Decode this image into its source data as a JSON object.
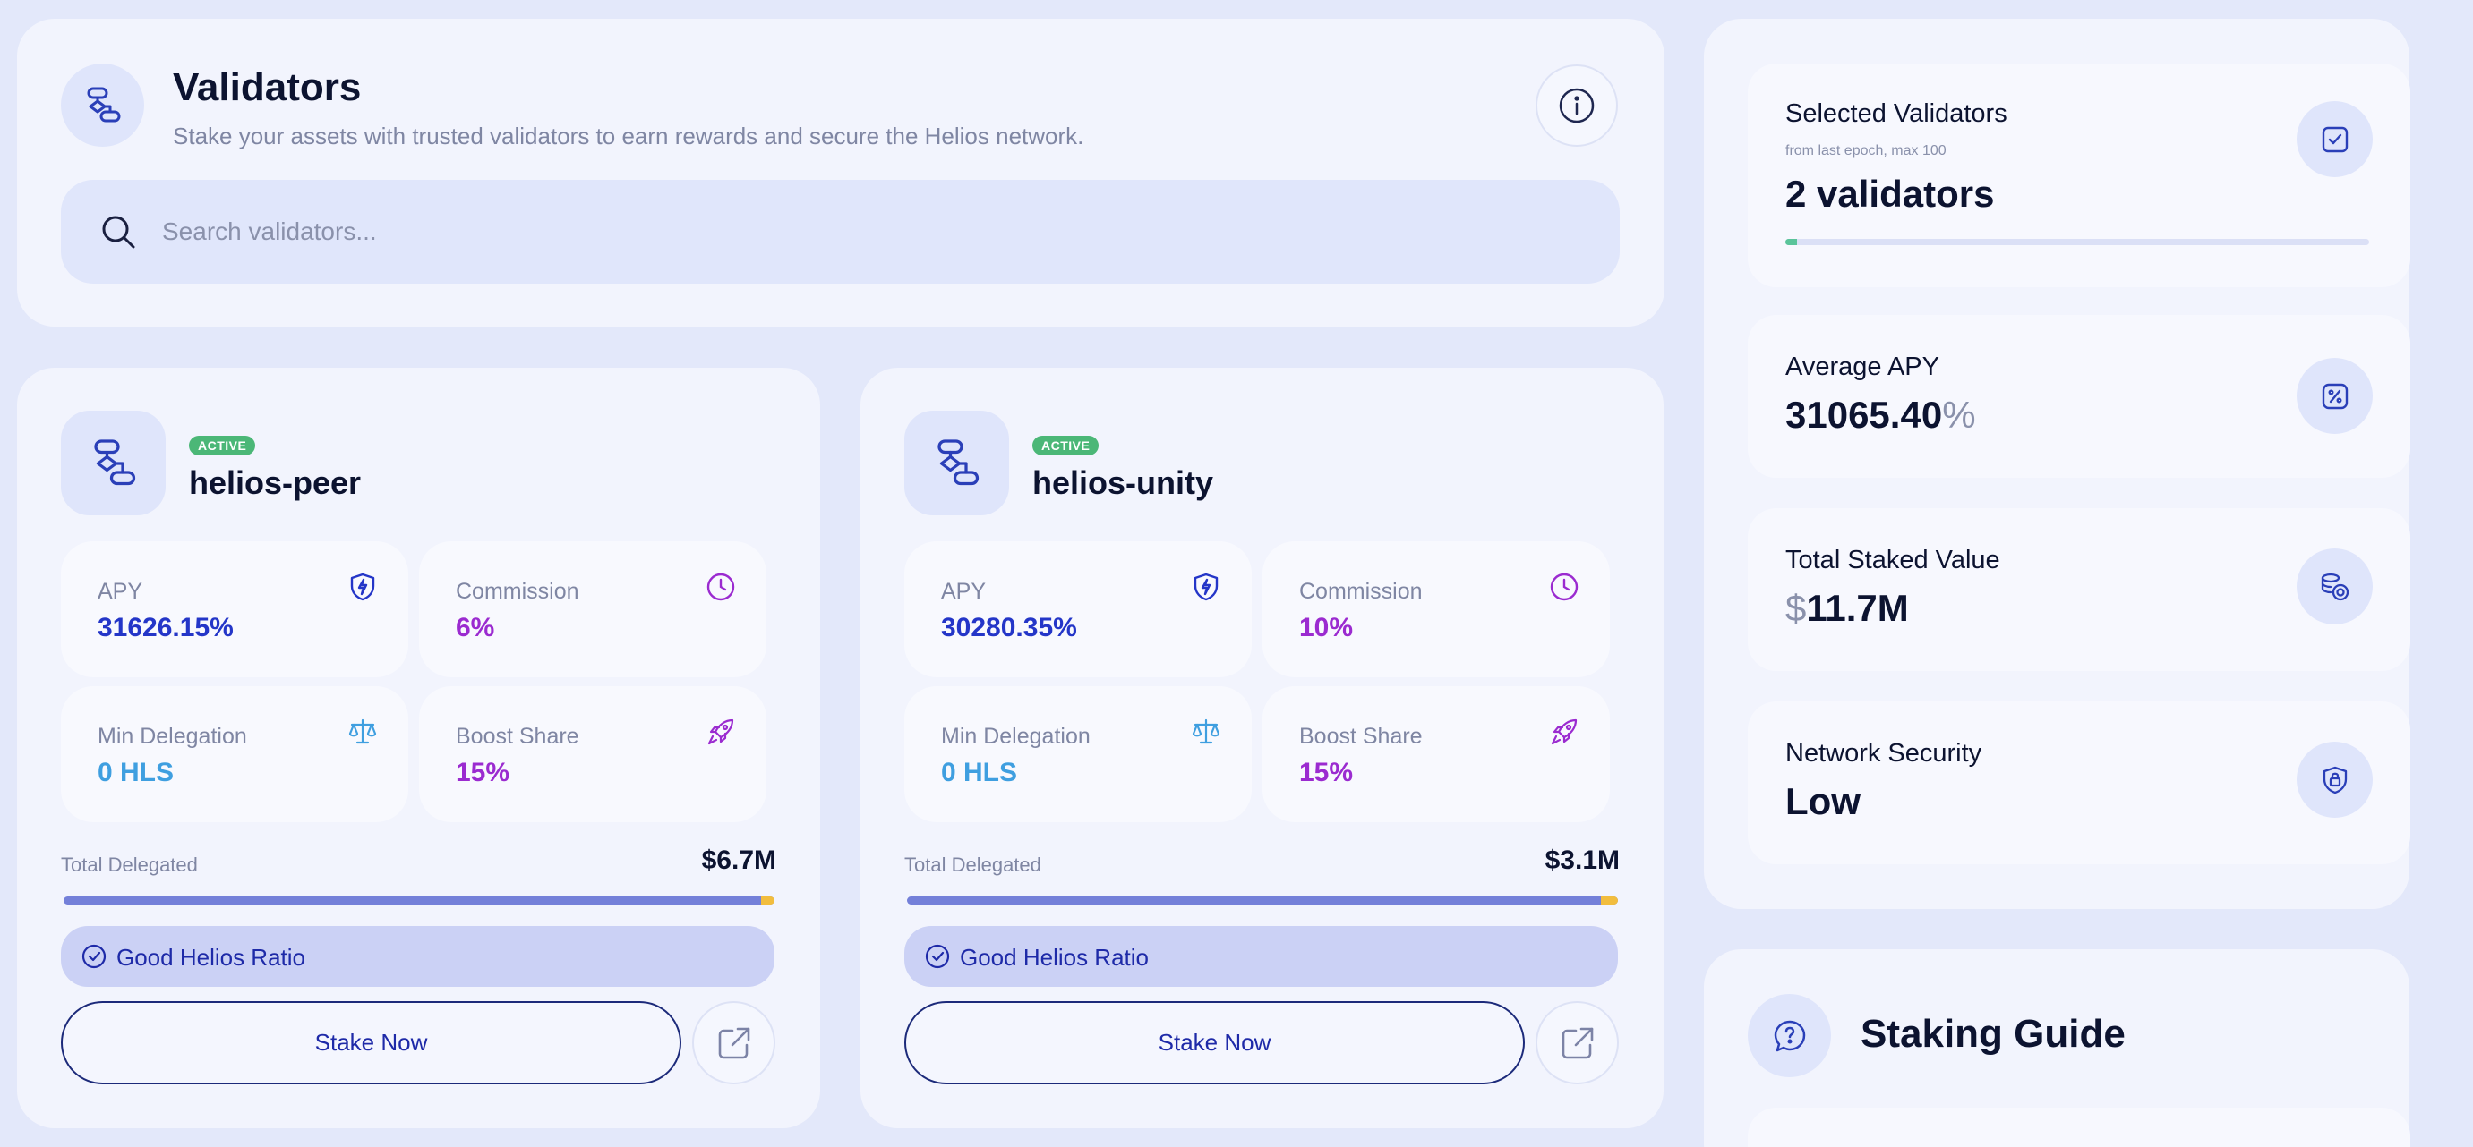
{
  "header": {
    "title": "Validators",
    "subtitle": "Stake your assets with trusted validators to earn rewards and secure the Helios network.",
    "search_placeholder": "Search validators..."
  },
  "validators": [
    {
      "status": "ACTIVE",
      "name": "helios-peer",
      "apy_label": "APY",
      "apy": "31626.15%",
      "commission_label": "Commission",
      "commission": "6%",
      "min_delegation_label": "Min Delegation",
      "min_delegation": "0 HLS",
      "boost_share_label": "Boost Share",
      "boost_share": "15%",
      "total_delegated_label": "Total Delegated",
      "total_delegated": "$6.7M",
      "helios_share_fraction": 0.98,
      "ratio_label": "Good Helios Ratio",
      "stake_label": "Stake Now"
    },
    {
      "status": "ACTIVE",
      "name": "helios-unity",
      "apy_label": "APY",
      "apy": "30280.35%",
      "commission_label": "Commission",
      "commission": "10%",
      "min_delegation_label": "Min Delegation",
      "min_delegation": "0 HLS",
      "boost_share_label": "Boost Share",
      "boost_share": "15%",
      "total_delegated_label": "Total Delegated",
      "total_delegated": "$3.1M",
      "helios_share_fraction": 0.975,
      "ratio_label": "Good Helios Ratio",
      "stake_label": "Stake Now"
    }
  ],
  "summary": {
    "selected": {
      "title": "Selected Validators",
      "note": "from last epoch, max 100",
      "value": "2 validators",
      "progress_fraction": 0.02
    },
    "average_apy": {
      "title": "Average APY",
      "value": "31065.40",
      "unit": "%"
    },
    "total_staked": {
      "title": "Total Staked Value",
      "currency": "$",
      "value": "11.7M"
    },
    "network_security": {
      "title": "Network Security",
      "value": "Low"
    }
  },
  "guide": {
    "title": "Staking Guide"
  },
  "colors": {
    "accent": "#2436c8",
    "purple": "#9b2bd0",
    "sky": "#3f9fe0",
    "active_badge": "#4bb777",
    "bar_main": "#7480d9",
    "bar_boost": "#f2bd3e"
  }
}
